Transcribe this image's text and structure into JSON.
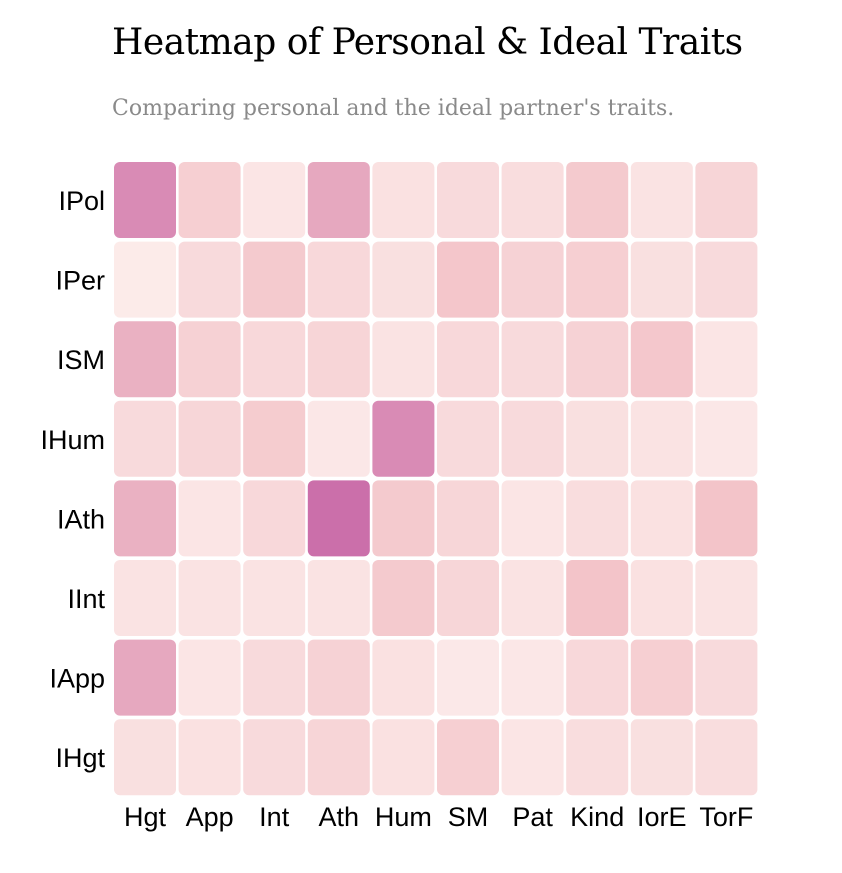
{
  "title": "Heatmap of Personal & Ideal Traits",
  "subtitle": "Comparing personal and the ideal partner's traits.",
  "chart_data": {
    "type": "heatmap",
    "title": "Heatmap of Personal & Ideal Traits",
    "subtitle": "Comparing personal and the ideal partner's traits.",
    "x_categories": [
      "Hgt",
      "App",
      "Int",
      "Ath",
      "Hum",
      "SM",
      "Pat",
      "Kind",
      "IorE",
      "TorF"
    ],
    "y_categories": [
      "IPol",
      "IPer",
      "ISM",
      "IHum",
      "IAth",
      "IInt",
      "IApp",
      "IHgt"
    ],
    "values": [
      [
        0.7,
        0.3,
        0.1,
        0.55,
        0.14,
        0.2,
        0.17,
        0.35,
        0.12,
        0.25
      ],
      [
        0.05,
        0.2,
        0.35,
        0.22,
        0.15,
        0.38,
        0.27,
        0.3,
        0.15,
        0.2
      ],
      [
        0.5,
        0.28,
        0.22,
        0.25,
        0.12,
        0.22,
        0.2,
        0.27,
        0.37,
        0.1
      ],
      [
        0.2,
        0.24,
        0.33,
        0.08,
        0.7,
        0.2,
        0.2,
        0.15,
        0.12,
        0.08
      ],
      [
        0.5,
        0.1,
        0.22,
        0.85,
        0.35,
        0.24,
        0.1,
        0.17,
        0.14,
        0.4
      ],
      [
        0.12,
        0.12,
        0.12,
        0.12,
        0.35,
        0.24,
        0.12,
        0.4,
        0.14,
        0.12
      ],
      [
        0.55,
        0.1,
        0.2,
        0.27,
        0.14,
        0.07,
        0.08,
        0.22,
        0.3,
        0.2
      ],
      [
        0.15,
        0.14,
        0.2,
        0.25,
        0.14,
        0.3,
        0.1,
        0.17,
        0.15,
        0.17
      ]
    ],
    "range": [
      0,
      1
    ],
    "color_scale": {
      "low": "#fdf0ee",
      "mid": "#f3c4c9",
      "high": "#be52a0"
    },
    "legend": "none"
  }
}
